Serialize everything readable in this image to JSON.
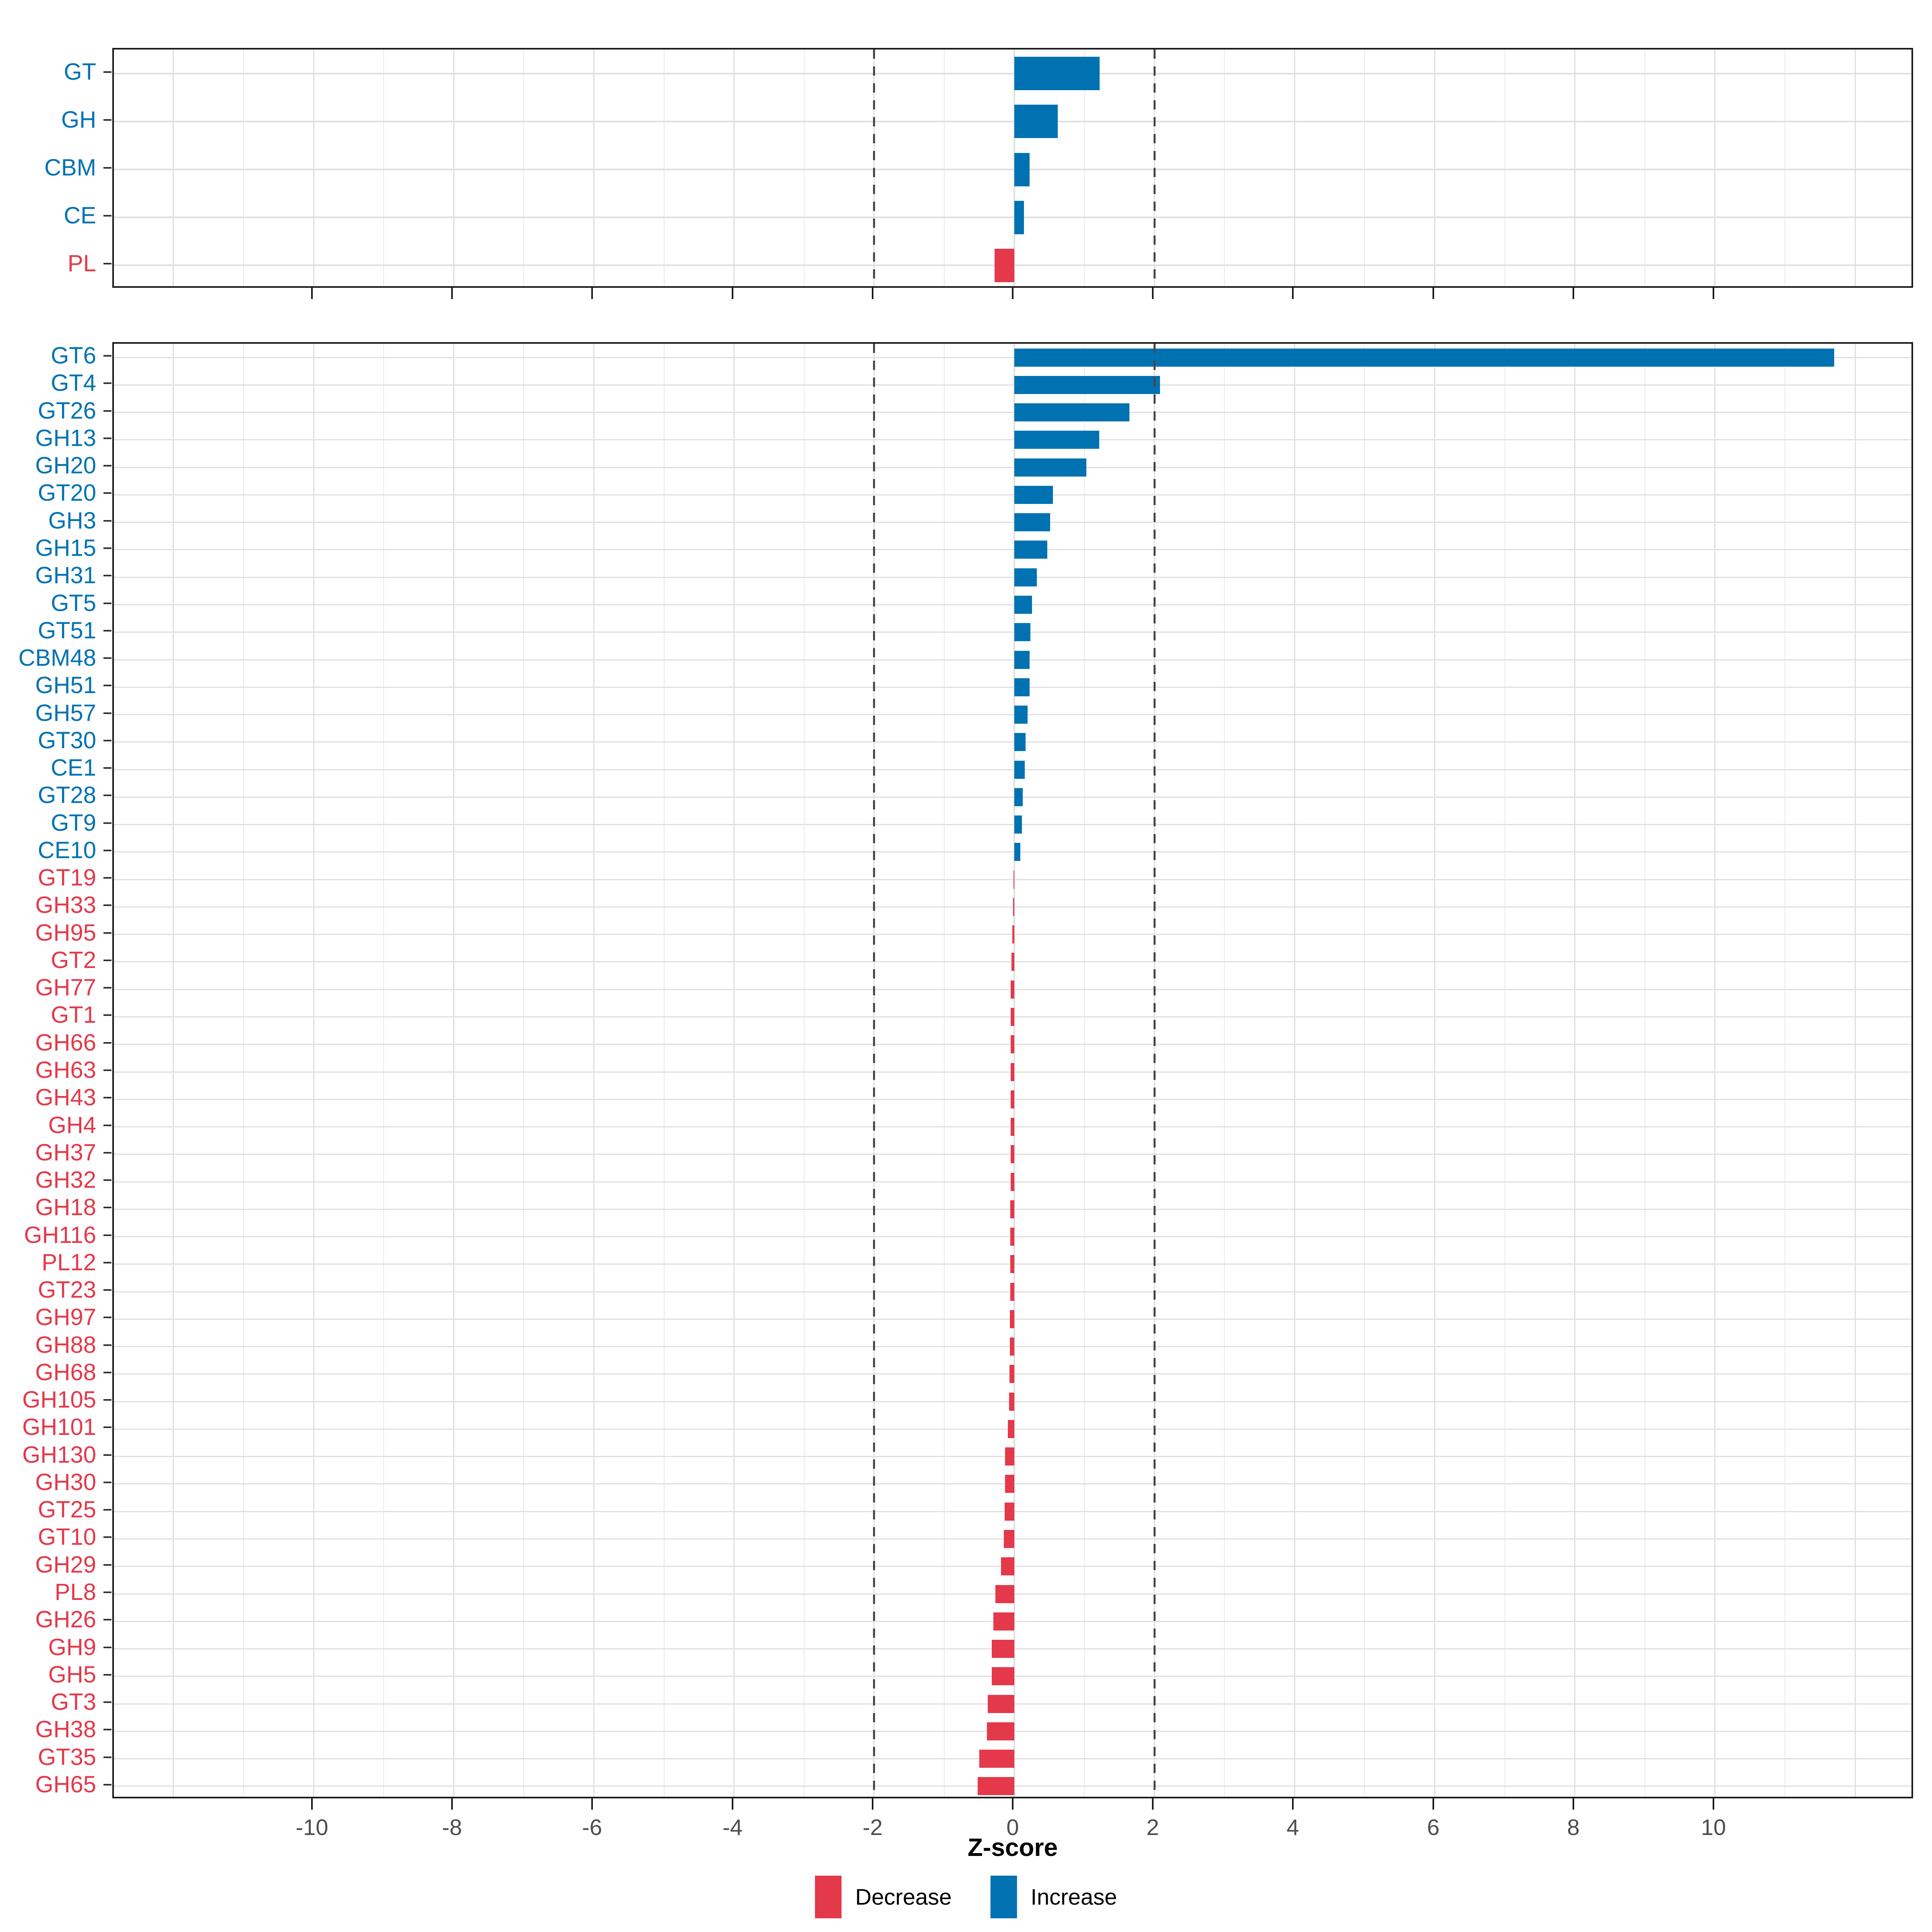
{
  "figure": {
    "background": "#ffffff",
    "description": "Two-panel horizontal bar chart of CAZyme class and family Z-scores"
  },
  "axis": {
    "title": "Z-score",
    "ticks": [
      -10,
      -8,
      -6,
      -4,
      -2,
      0,
      2,
      4,
      6,
      8,
      10
    ],
    "range": [
      -12.85,
      12.85
    ],
    "dashed_lines": [
      -2,
      2
    ],
    "gridline_step": 1
  },
  "colors": {
    "increase": "#0072b2",
    "decrease": "#e4394a",
    "grid_major": "#e0e0e0",
    "grid_minor": "#eaeaea",
    "dashed_line": "#474747",
    "panel_border": "#1a1a1a",
    "tick_label": "#4d4d4d"
  },
  "legend": {
    "items": [
      {
        "label": "Decrease",
        "color": "#e4394a"
      },
      {
        "label": "Increase",
        "color": "#0072b2"
      }
    ]
  },
  "chart_data": [
    {
      "type": "bar",
      "orientation": "horizontal",
      "panel": "top",
      "title": "",
      "xlabel": "Z-score",
      "xlim": [
        -12.85,
        12.85
      ],
      "grid": true,
      "categories": [
        "GT",
        "GH",
        "CBM",
        "CE",
        "PL"
      ],
      "values": [
        1.22,
        0.62,
        0.22,
        0.14,
        -0.28
      ],
      "groups": [
        "Increase",
        "Increase",
        "Increase",
        "Increase",
        "Decrease"
      ]
    },
    {
      "type": "bar",
      "orientation": "horizontal",
      "panel": "bottom",
      "title": "",
      "xlabel": "Z-score",
      "xlim": [
        -12.85,
        12.85
      ],
      "grid": true,
      "categories": [
        "GT6",
        "GT4",
        "GT26",
        "GH13",
        "GH20",
        "GT20",
        "GH3",
        "GH15",
        "GH31",
        "GT5",
        "GT51",
        "CBM48",
        "GH51",
        "GH57",
        "GT30",
        "CE1",
        "GT28",
        "GT9",
        "CE10",
        "GT19",
        "GH33",
        "GH95",
        "GT2",
        "GH77",
        "GT1",
        "GH66",
        "GH63",
        "GH43",
        "GH4",
        "GH37",
        "GH32",
        "GH18",
        "GH116",
        "PL12",
        "GT23",
        "GH97",
        "GH88",
        "GH68",
        "GH105",
        "GH101",
        "GH130",
        "GH30",
        "GT25",
        "GT10",
        "GH29",
        "PL8",
        "GH26",
        "GH9",
        "GH5",
        "GT3",
        "GH38",
        "GT35",
        "GH65"
      ],
      "values": [
        11.7,
        2.08,
        1.64,
        1.21,
        1.03,
        0.55,
        0.51,
        0.47,
        0.32,
        0.25,
        0.23,
        0.22,
        0.22,
        0.19,
        0.16,
        0.15,
        0.12,
        0.11,
        0.085,
        -0.01,
        -0.015,
        -0.03,
        -0.04,
        -0.05,
        -0.05,
        -0.05,
        -0.05,
        -0.05,
        -0.05,
        -0.05,
        -0.05,
        -0.055,
        -0.06,
        -0.06,
        -0.06,
        -0.065,
        -0.065,
        -0.07,
        -0.075,
        -0.09,
        -0.13,
        -0.13,
        -0.14,
        -0.15,
        -0.19,
        -0.27,
        -0.3,
        -0.32,
        -0.32,
        -0.38,
        -0.39,
        -0.5,
        -0.52
      ],
      "groups": [
        "Increase",
        "Increase",
        "Increase",
        "Increase",
        "Increase",
        "Increase",
        "Increase",
        "Increase",
        "Increase",
        "Increase",
        "Increase",
        "Increase",
        "Increase",
        "Increase",
        "Increase",
        "Increase",
        "Increase",
        "Increase",
        "Increase",
        "Decrease",
        "Decrease",
        "Decrease",
        "Decrease",
        "Decrease",
        "Decrease",
        "Decrease",
        "Decrease",
        "Decrease",
        "Decrease",
        "Decrease",
        "Decrease",
        "Decrease",
        "Decrease",
        "Decrease",
        "Decrease",
        "Decrease",
        "Decrease",
        "Decrease",
        "Decrease",
        "Decrease",
        "Decrease",
        "Decrease",
        "Decrease",
        "Decrease",
        "Decrease",
        "Decrease",
        "Decrease",
        "Decrease",
        "Decrease",
        "Decrease",
        "Decrease",
        "Decrease",
        "Decrease"
      ]
    }
  ]
}
